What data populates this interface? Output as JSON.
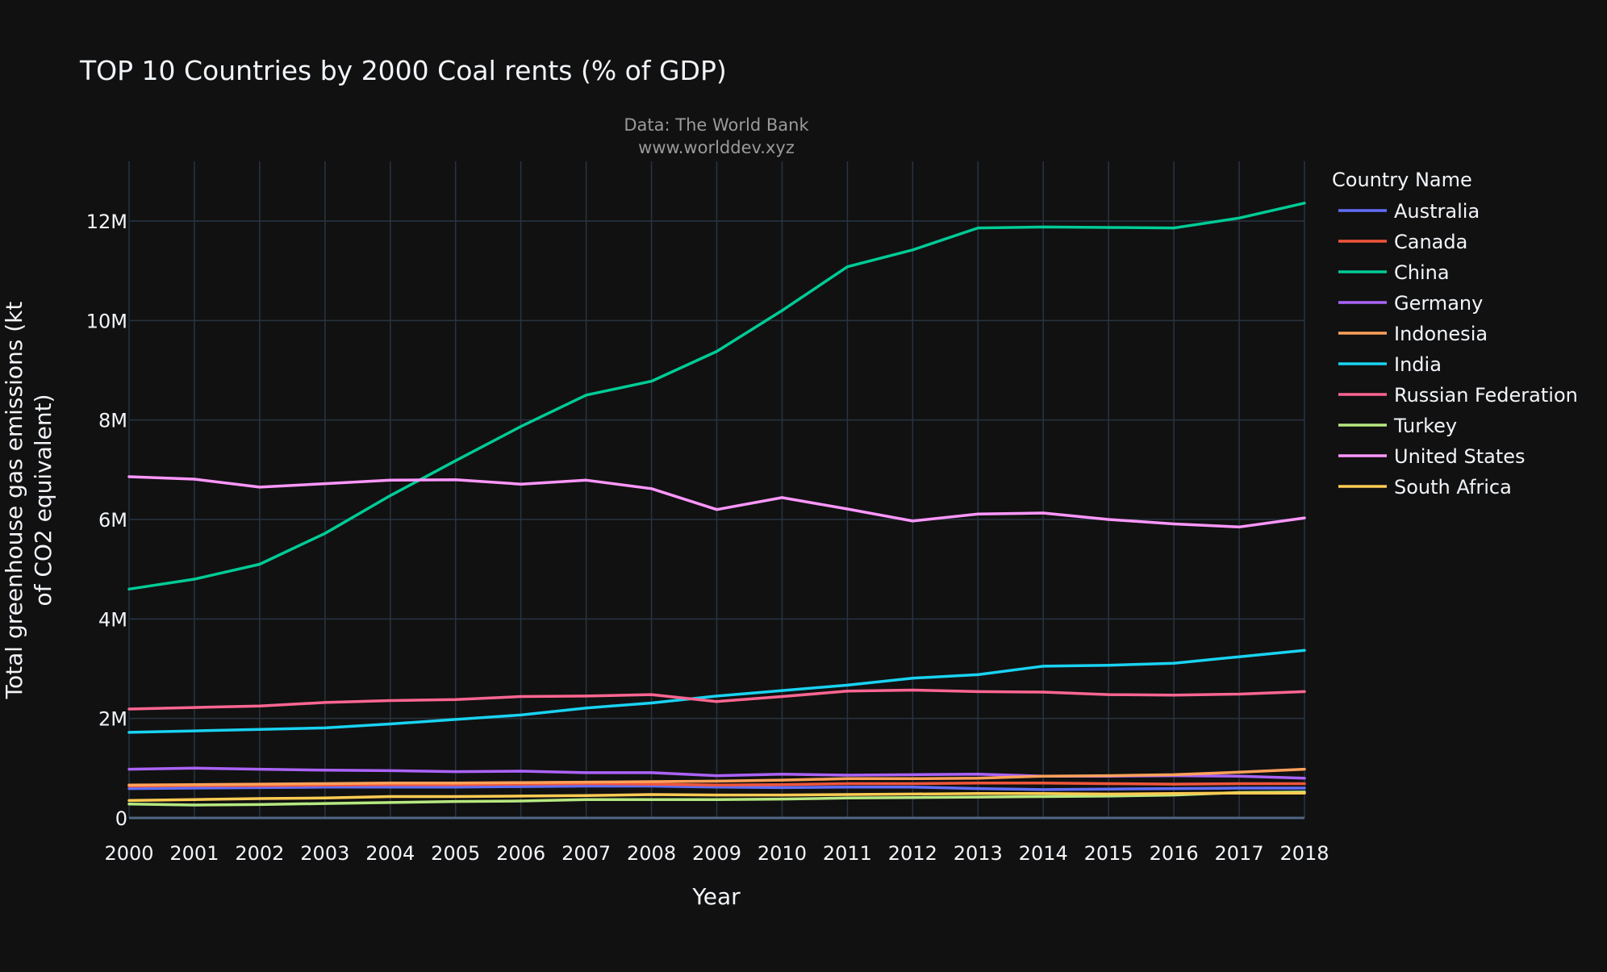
{
  "chart_data": {
    "type": "line",
    "title": "TOP 10 Countries by 2000 Coal rents (% of GDP)",
    "subtitle": [
      "Data: The World Bank",
      "www.worlddev.xyz"
    ],
    "xlabel": "Year",
    "ylabel": [
      "Total greenhouse gas emissions (kt",
      "of CO2 equivalent)"
    ],
    "x": [
      2000,
      2001,
      2002,
      2003,
      2004,
      2005,
      2006,
      2007,
      2008,
      2009,
      2010,
      2011,
      2012,
      2013,
      2014,
      2015,
      2016,
      2017,
      2018
    ],
    "xlim": [
      2000,
      2018
    ],
    "ylim": [
      0,
      13200000
    ],
    "yticks": [
      0,
      2000000,
      4000000,
      6000000,
      8000000,
      10000000,
      12000000
    ],
    "ytick_labels": [
      "0",
      "2M",
      "4M",
      "6M",
      "8M",
      "10M",
      "12M"
    ],
    "grid": true,
    "legend_title": "Country Name",
    "legend_position": "top-right, outside plot",
    "series": [
      {
        "name": "Australia",
        "color": "#636efa",
        "values": [
          590000,
          600000,
          610000,
          620000,
          620000,
          620000,
          630000,
          640000,
          640000,
          620000,
          610000,
          620000,
          620000,
          590000,
          570000,
          580000,
          590000,
          600000,
          600000
        ]
      },
      {
        "name": "Canada",
        "color": "#ef553b",
        "values": [
          640000,
          650000,
          650000,
          660000,
          670000,
          670000,
          680000,
          690000,
          680000,
          660000,
          670000,
          690000,
          690000,
          700000,
          700000,
          690000,
          680000,
          690000,
          690000
        ]
      },
      {
        "name": "China",
        "color": "#00cc96",
        "values": [
          4600000,
          4800000,
          5100000,
          5720000,
          6480000,
          7180000,
          7870000,
          8500000,
          8780000,
          9380000,
          10200000,
          11080000,
          11420000,
          11860000,
          11880000,
          11870000,
          11860000,
          12060000,
          12360000
        ]
      },
      {
        "name": "Germany",
        "color": "#ab63fa",
        "values": [
          980000,
          1000000,
          980000,
          960000,
          950000,
          930000,
          940000,
          910000,
          910000,
          850000,
          880000,
          860000,
          870000,
          880000,
          840000,
          840000,
          850000,
          840000,
          800000
        ]
      },
      {
        "name": "Indonesia",
        "color": "#ffa15a",
        "values": [
          660000,
          670000,
          680000,
          690000,
          700000,
          700000,
          710000,
          720000,
          730000,
          740000,
          760000,
          790000,
          790000,
          800000,
          840000,
          850000,
          870000,
          920000,
          980000
        ]
      },
      {
        "name": "India",
        "color": "#19d3f3",
        "values": [
          1720000,
          1750000,
          1780000,
          1810000,
          1890000,
          1980000,
          2070000,
          2210000,
          2310000,
          2450000,
          2560000,
          2670000,
          2810000,
          2880000,
          3050000,
          3070000,
          3110000,
          3240000,
          3370000
        ]
      },
      {
        "name": "Russian Federation",
        "color": "#ff6692",
        "values": [
          2190000,
          2220000,
          2250000,
          2320000,
          2360000,
          2380000,
          2440000,
          2450000,
          2480000,
          2340000,
          2440000,
          2550000,
          2570000,
          2540000,
          2530000,
          2480000,
          2470000,
          2490000,
          2540000
        ]
      },
      {
        "name": "Turkey",
        "color": "#b6e880",
        "values": [
          280000,
          260000,
          270000,
          290000,
          310000,
          330000,
          340000,
          370000,
          370000,
          370000,
          380000,
          400000,
          410000,
          420000,
          430000,
          440000,
          460000,
          510000,
          520000
        ]
      },
      {
        "name": "United States",
        "color": "#ff97ff",
        "values": [
          6860000,
          6810000,
          6650000,
          6720000,
          6790000,
          6800000,
          6710000,
          6790000,
          6620000,
          6200000,
          6440000,
          6210000,
          5970000,
          6110000,
          6130000,
          6000000,
          5910000,
          5850000,
          6030000
        ]
      },
      {
        "name": "South Africa",
        "color": "#fecb52",
        "values": [
          350000,
          370000,
          390000,
          400000,
          430000,
          430000,
          440000,
          450000,
          470000,
          460000,
          460000,
          470000,
          480000,
          490000,
          490000,
          480000,
          490000,
          500000,
          500000
        ]
      }
    ]
  }
}
